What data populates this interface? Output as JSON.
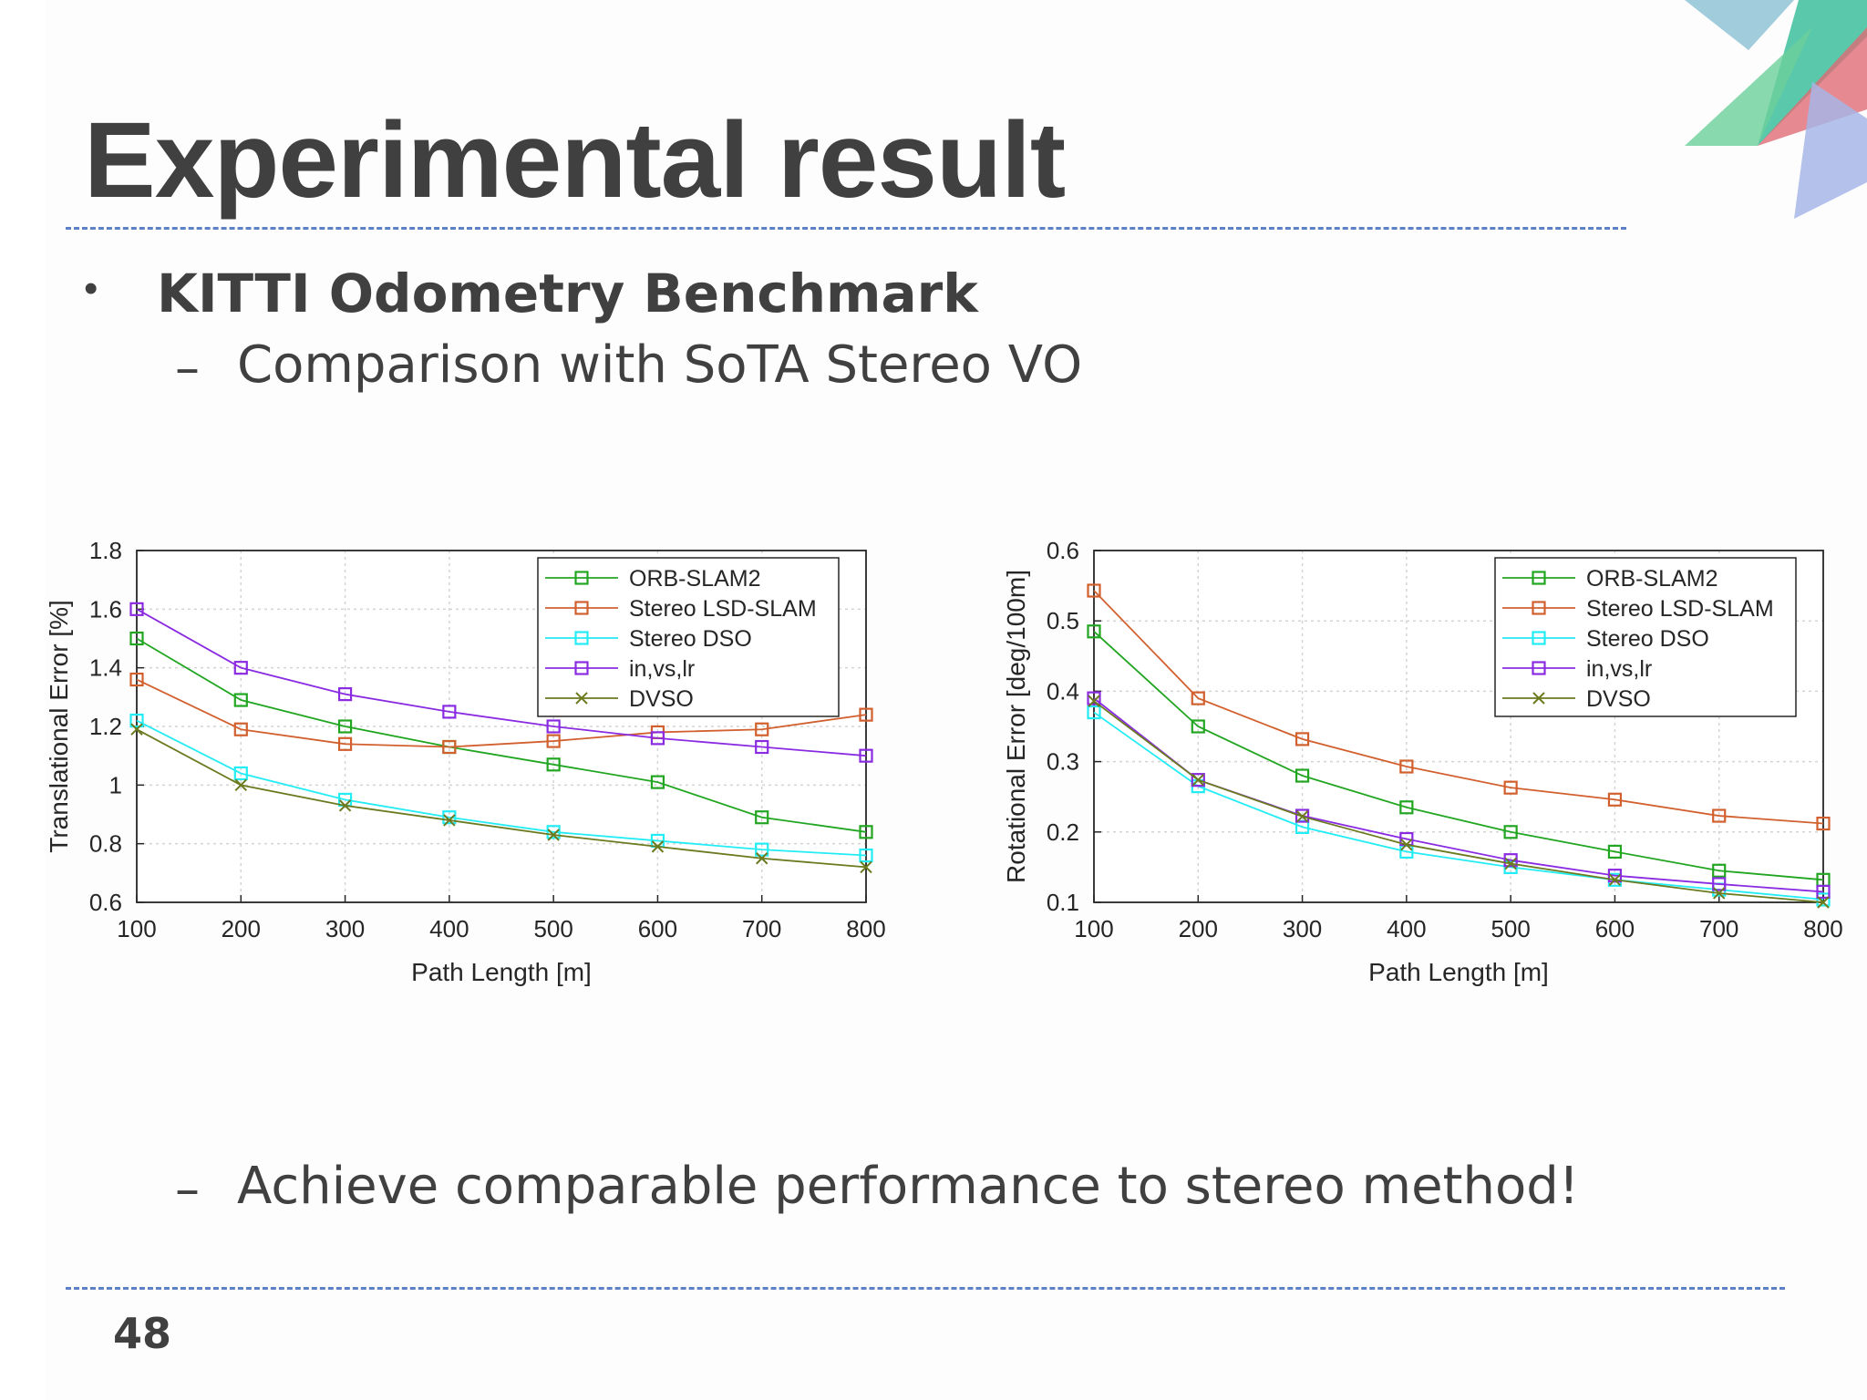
{
  "slide": {
    "title": "Experimental result",
    "bullet": "KITTI Odometry Benchmark",
    "sub_items": [
      "Comparison with SoTA Stereo VO",
      "Achieve comparable performance to stereo method!"
    ],
    "page_number": "48",
    "bullet_symbol": "•",
    "dash_symbol": "–"
  },
  "colors": {
    "text": "#404040",
    "divider": "#5b82c4",
    "orb_slam2": "#22a622",
    "stereo_lsd_slam": "#d2602f",
    "stereo_dso": "#22ecf4",
    "in_vs_lr": "#8a2be2",
    "dvso": "#6b7a1f"
  },
  "chart_data": [
    {
      "type": "line",
      "title": "",
      "xlabel": "Path Length [m]",
      "ylabel": "Translational Error [%]",
      "x": [
        100,
        200,
        300,
        400,
        500,
        600,
        700,
        800
      ],
      "xlim": [
        100,
        800
      ],
      "ylim": [
        0.6,
        1.8
      ],
      "x_ticks": [
        "100",
        "200",
        "300",
        "400",
        "500",
        "600",
        "700",
        "800"
      ],
      "y_ticks": [
        "0.6",
        "0.8",
        "1",
        "1.2",
        "1.4",
        "1.6",
        "1.8"
      ],
      "grid": true,
      "legend_position": "top-right",
      "series": [
        {
          "name": "ORB-SLAM2",
          "marker": "square",
          "color": "#22a622",
          "values": [
            1.5,
            1.29,
            1.2,
            1.13,
            1.07,
            1.01,
            0.89,
            0.84
          ]
        },
        {
          "name": "Stereo LSD-SLAM",
          "marker": "square",
          "color": "#d2602f",
          "values": [
            1.36,
            1.19,
            1.14,
            1.13,
            1.15,
            1.18,
            1.19,
            1.24
          ]
        },
        {
          "name": "Stereo DSO",
          "marker": "square",
          "color": "#22ecf4",
          "values": [
            1.22,
            1.04,
            0.95,
            0.89,
            0.84,
            0.81,
            0.78,
            0.76
          ]
        },
        {
          "name": "in,vs,lr",
          "marker": "square",
          "color": "#8a2be2",
          "values": [
            1.6,
            1.4,
            1.31,
            1.25,
            1.2,
            1.16,
            1.13,
            1.1
          ]
        },
        {
          "name": "DVSO",
          "marker": "x",
          "color": "#6b7a1f",
          "values": [
            1.19,
            1.0,
            0.93,
            0.88,
            0.83,
            0.79,
            0.75,
            0.72
          ]
        }
      ]
    },
    {
      "type": "line",
      "title": "",
      "xlabel": "Path Length [m]",
      "ylabel": "Rotational Error [deg/100m]",
      "x": [
        100,
        200,
        300,
        400,
        500,
        600,
        700,
        800
      ],
      "xlim": [
        100,
        800
      ],
      "ylim": [
        0.1,
        0.6
      ],
      "x_ticks": [
        "100",
        "200",
        "300",
        "400",
        "500",
        "600",
        "700",
        "800"
      ],
      "y_ticks": [
        "0.1",
        "0.2",
        "0.3",
        "0.4",
        "0.5",
        "0.6"
      ],
      "grid": true,
      "legend_position": "top-right",
      "series": [
        {
          "name": "ORB-SLAM2",
          "marker": "square",
          "color": "#22a622",
          "values": [
            0.485,
            0.35,
            0.28,
            0.235,
            0.2,
            0.172,
            0.145,
            0.132
          ]
        },
        {
          "name": "Stereo LSD-SLAM",
          "marker": "square",
          "color": "#d2602f",
          "values": [
            0.543,
            0.39,
            0.332,
            0.293,
            0.263,
            0.246,
            0.223,
            0.212
          ]
        },
        {
          "name": "Stereo DSO",
          "marker": "square",
          "color": "#22ecf4",
          "values": [
            0.37,
            0.265,
            0.207,
            0.172,
            0.15,
            0.132,
            0.118,
            0.104
          ]
        },
        {
          "name": "in,vs,lr",
          "marker": "square",
          "color": "#8a2be2",
          "values": [
            0.39,
            0.274,
            0.223,
            0.19,
            0.16,
            0.138,
            0.126,
            0.115
          ]
        },
        {
          "name": "DVSO",
          "marker": "x",
          "color": "#6b7a1f",
          "values": [
            0.386,
            0.274,
            0.222,
            0.182,
            0.155,
            0.132,
            0.113,
            0.1
          ]
        }
      ]
    }
  ]
}
